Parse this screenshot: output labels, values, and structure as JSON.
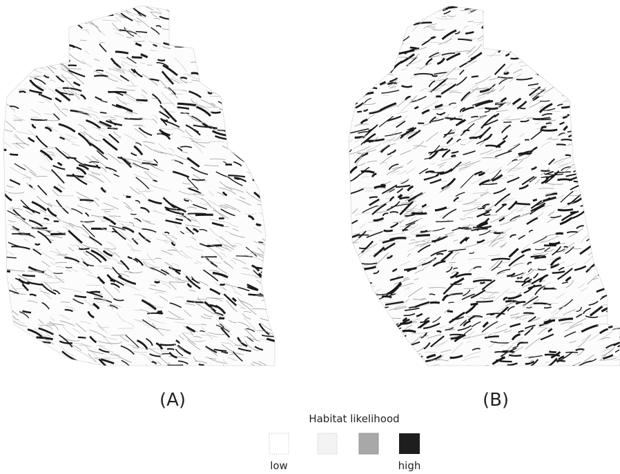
{
  "panels": [
    {
      "label": "(A)"
    },
    {
      "label": "(B)"
    }
  ],
  "legend": {
    "title": "Habitat likelihood",
    "low": "low",
    "high": "high"
  }
}
